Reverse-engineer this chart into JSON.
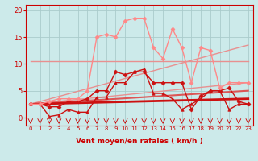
{
  "background_color": "#cceaea",
  "grid_color": "#aacccc",
  "xlabel": "Vent moyen/en rafales ( km/h )",
  "xlabel_color": "#cc0000",
  "tick_color": "#cc0000",
  "ylim": [
    -1.5,
    21
  ],
  "xlim": [
    -0.5,
    23.5
  ],
  "yticks": [
    0,
    5,
    10,
    15,
    20
  ],
  "xticks": [
    0,
    1,
    2,
    3,
    4,
    5,
    6,
    7,
    8,
    9,
    10,
    11,
    12,
    13,
    14,
    15,
    16,
    17,
    18,
    19,
    20,
    21,
    22,
    23
  ],
  "lines": [
    {
      "x": [
        0,
        23
      ],
      "y": [
        10.5,
        10.5
      ],
      "color": "#e89090",
      "linewidth": 1.0,
      "marker": null,
      "markersize": 0
    },
    {
      "x": [
        0,
        23
      ],
      "y": [
        2.5,
        13.5
      ],
      "color": "#e89090",
      "linewidth": 1.0,
      "marker": null,
      "markersize": 0
    },
    {
      "x": [
        0,
        23
      ],
      "y": [
        2.5,
        6.5
      ],
      "color": "#e89090",
      "linewidth": 1.0,
      "marker": null,
      "markersize": 0
    },
    {
      "x": [
        0,
        23
      ],
      "y": [
        2.5,
        5.0
      ],
      "color": "#dd5555",
      "linewidth": 1.5,
      "marker": null,
      "markersize": 0
    },
    {
      "x": [
        0,
        23
      ],
      "y": [
        2.5,
        3.5
      ],
      "color": "#cc1111",
      "linewidth": 2.0,
      "marker": null,
      "markersize": 0
    },
    {
      "x": [
        0,
        1,
        2,
        3,
        4,
        5,
        6,
        7,
        8,
        9,
        10,
        11,
        12,
        13,
        14,
        15,
        16,
        17,
        18,
        19,
        20,
        21,
        22,
        23
      ],
      "y": [
        2.5,
        2.5,
        0.2,
        0.5,
        1.5,
        1.0,
        1.0,
        3.8,
        3.8,
        6.5,
        6.5,
        8.5,
        9.0,
        4.5,
        4.5,
        3.5,
        1.5,
        2.5,
        3.5,
        5.0,
        5.0,
        1.5,
        2.5,
        2.5
      ],
      "color": "#cc1111",
      "linewidth": 1.0,
      "marker": "^",
      "markersize": 2.5
    },
    {
      "x": [
        0,
        1,
        2,
        3,
        4,
        5,
        6,
        7,
        8,
        9,
        10,
        11,
        12,
        13,
        14,
        15,
        16,
        17,
        18,
        19,
        20,
        21,
        22,
        23
      ],
      "y": [
        2.5,
        2.5,
        2.0,
        2.0,
        3.0,
        3.0,
        3.5,
        5.0,
        5.0,
        8.5,
        8.0,
        8.5,
        8.5,
        6.5,
        6.5,
        6.5,
        6.5,
        1.5,
        4.0,
        5.0,
        5.0,
        5.5,
        3.0,
        2.5
      ],
      "color": "#cc1111",
      "linewidth": 1.0,
      "marker": "D",
      "markersize": 2.5
    },
    {
      "x": [
        0,
        1,
        2,
        3,
        4,
        5,
        6,
        7,
        8,
        9,
        10,
        11,
        12,
        13,
        14,
        15,
        16,
        17,
        18,
        19,
        20,
        21,
        22,
        23
      ],
      "y": [
        2.5,
        2.5,
        3.0,
        3.5,
        3.5,
        3.5,
        5.0,
        15.0,
        15.5,
        15.0,
        18.0,
        18.5,
        18.5,
        13.0,
        11.0,
        16.5,
        13.0,
        6.5,
        13.0,
        12.5,
        5.5,
        6.5,
        6.5,
        6.5
      ],
      "color": "#ff8888",
      "linewidth": 1.0,
      "marker": "D",
      "markersize": 2.5
    }
  ]
}
